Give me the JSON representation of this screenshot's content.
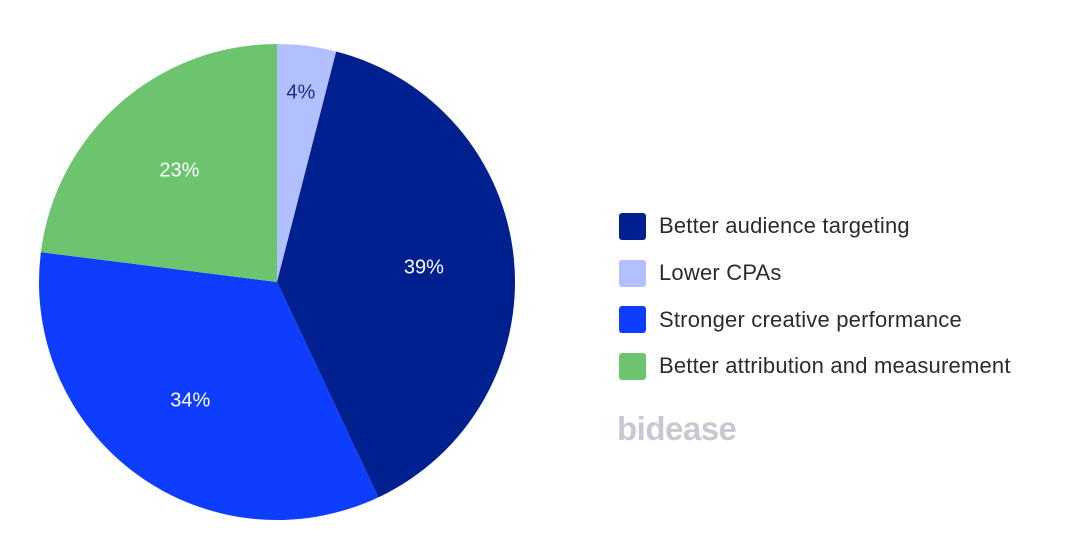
{
  "chart_data": {
    "type": "pie",
    "start": "top, clockwise",
    "slices": [
      {
        "label": "Lower CPAs",
        "value": 4,
        "display": "4%",
        "color": "#b3c0ff",
        "label_color": "#1a2a8a"
      },
      {
        "label": "Better audience targeting",
        "value": 39,
        "display": "39%",
        "color": "#00208f",
        "label_color": "#ffffff"
      },
      {
        "label": "Stronger creative performance",
        "value": 34,
        "display": "34%",
        "color": "#0f3dff",
        "label_color": "#ffffff"
      },
      {
        "label": "Better attribution and measurement",
        "value": 23,
        "display": "23%",
        "color": "#6cc56e",
        "label_color": "#ffffff"
      }
    ],
    "legend": {
      "placement": "right",
      "items": [
        {
          "label": "Better audience targeting",
          "color": "#00208f"
        },
        {
          "label": "Lower CPAs",
          "color": "#b3c0ff"
        },
        {
          "label": "Stronger creative performance",
          "color": "#0f3dff"
        },
        {
          "label": "Better attribution and measurement",
          "color": "#6cc56e"
        }
      ]
    }
  },
  "brand": {
    "logo_text": "bidease"
  }
}
